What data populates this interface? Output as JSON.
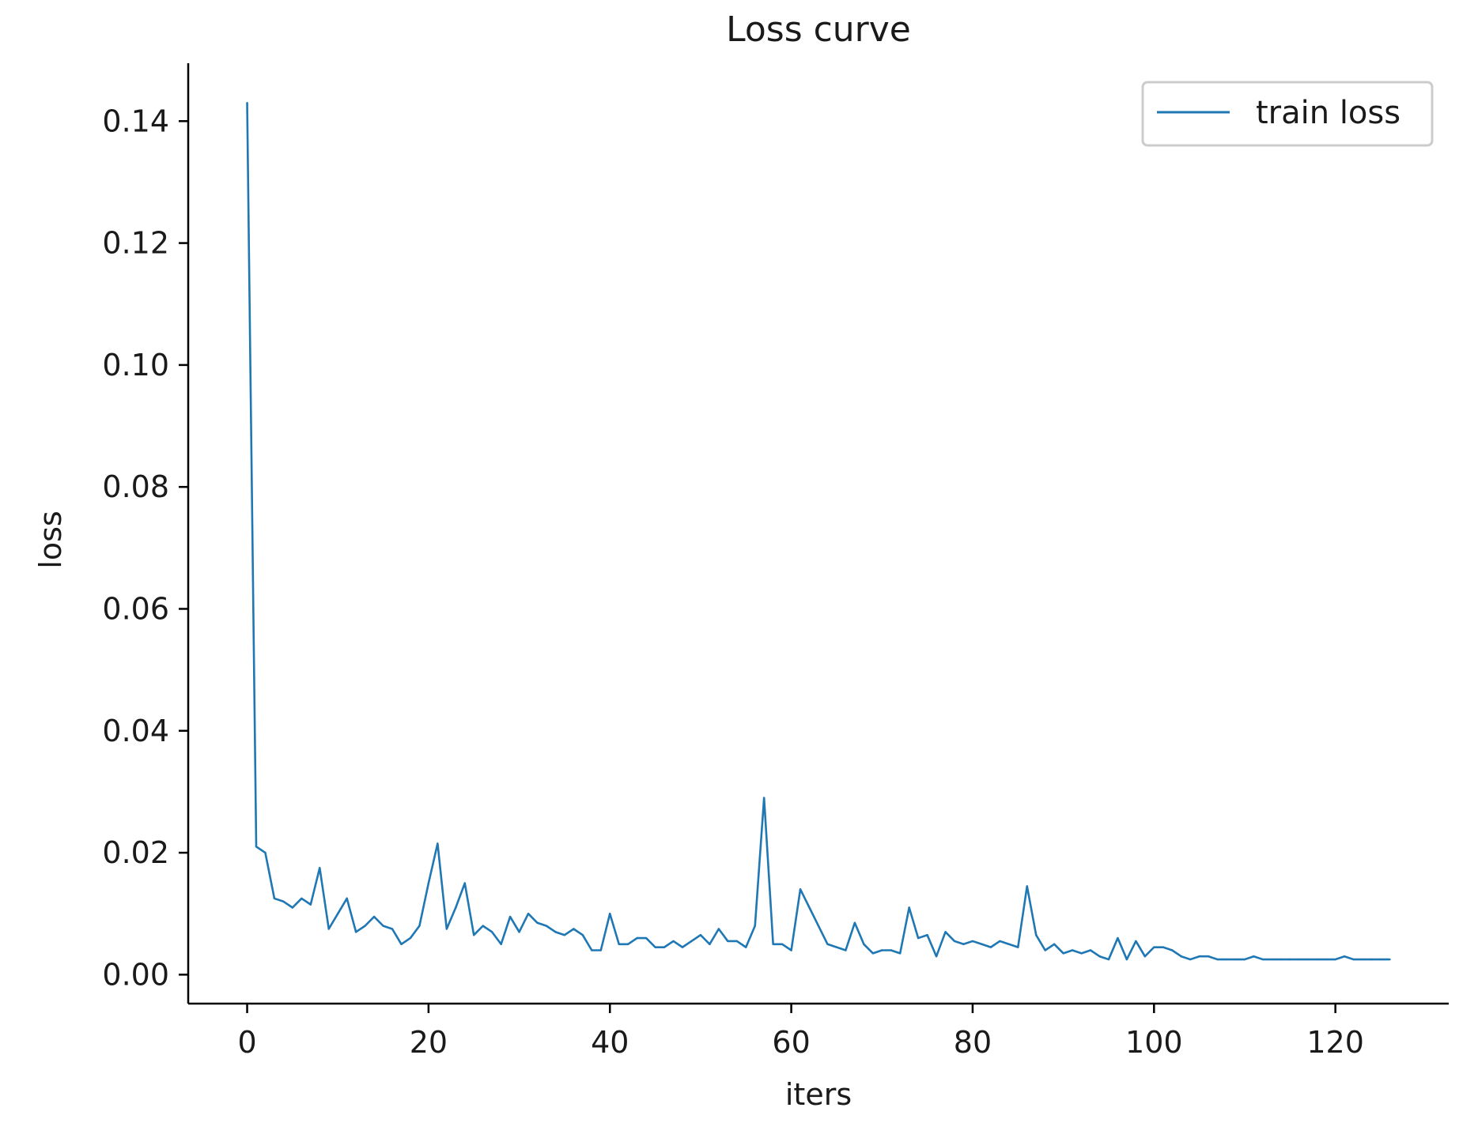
{
  "chart_data": {
    "type": "line",
    "title": "Loss curve",
    "xlabel": "iters",
    "ylabel": "loss",
    "xlim": [
      -6.5,
      132.5
    ],
    "ylim": [
      -0.00475,
      0.1495
    ],
    "x_ticks": [
      0,
      20,
      40,
      60,
      80,
      100,
      120
    ],
    "x_tick_labels": [
      "0",
      "20",
      "40",
      "60",
      "80",
      "100",
      "120"
    ],
    "y_ticks": [
      0.0,
      0.02,
      0.04,
      0.06,
      0.08,
      0.1,
      0.12,
      0.14
    ],
    "y_tick_labels": [
      "0.00",
      "0.02",
      "0.04",
      "0.06",
      "0.08",
      "0.10",
      "0.12",
      "0.14"
    ],
    "grid": false,
    "legend_position": "top-right",
    "line_color": "#1f77b4",
    "series": [
      {
        "name": "train loss",
        "x": [
          0,
          1,
          2,
          3,
          4,
          5,
          6,
          7,
          8,
          9,
          10,
          11,
          12,
          13,
          14,
          15,
          16,
          17,
          18,
          19,
          20,
          21,
          22,
          23,
          24,
          25,
          26,
          27,
          28,
          29,
          30,
          31,
          32,
          33,
          34,
          35,
          36,
          37,
          38,
          39,
          40,
          41,
          42,
          43,
          44,
          45,
          46,
          47,
          48,
          49,
          50,
          51,
          52,
          53,
          54,
          55,
          56,
          57,
          58,
          59,
          60,
          61,
          62,
          63,
          64,
          65,
          66,
          67,
          68,
          69,
          70,
          71,
          72,
          73,
          74,
          75,
          76,
          77,
          78,
          79,
          80,
          81,
          82,
          83,
          84,
          85,
          86,
          87,
          88,
          89,
          90,
          91,
          92,
          93,
          94,
          95,
          96,
          97,
          98,
          99,
          100,
          101,
          102,
          103,
          104,
          105,
          106,
          107,
          108,
          109,
          110,
          111,
          112,
          113,
          114,
          115,
          116,
          117,
          118,
          119,
          120,
          121,
          122,
          123,
          124,
          125,
          126
        ],
        "y": [
          0.143,
          0.021,
          0.02,
          0.0125,
          0.012,
          0.011,
          0.0125,
          0.0115,
          0.0175,
          0.0075,
          0.01,
          0.0125,
          0.007,
          0.008,
          0.0095,
          0.008,
          0.0075,
          0.005,
          0.006,
          0.008,
          0.015,
          0.0215,
          0.0075,
          0.011,
          0.015,
          0.0065,
          0.008,
          0.007,
          0.005,
          0.0095,
          0.007,
          0.01,
          0.0085,
          0.008,
          0.007,
          0.0065,
          0.0075,
          0.0065,
          0.004,
          0.004,
          0.01,
          0.005,
          0.005,
          0.006,
          0.006,
          0.0045,
          0.0045,
          0.0055,
          0.0045,
          0.0055,
          0.0065,
          0.005,
          0.0075,
          0.0055,
          0.0055,
          0.0045,
          0.008,
          0.029,
          0.005,
          0.005,
          0.004,
          0.014,
          0.011,
          0.008,
          0.005,
          0.0045,
          0.004,
          0.0085,
          0.005,
          0.0035,
          0.004,
          0.004,
          0.0035,
          0.011,
          0.006,
          0.0065,
          0.003,
          0.007,
          0.0055,
          0.005,
          0.0055,
          0.005,
          0.0045,
          0.0055,
          0.005,
          0.0045,
          0.0145,
          0.0065,
          0.004,
          0.005,
          0.0035,
          0.004,
          0.0035,
          0.004,
          0.003,
          0.0025,
          0.006,
          0.0025,
          0.0055,
          0.003,
          0.0045,
          0.0045,
          0.004,
          0.003,
          0.0025,
          0.003,
          0.003,
          0.0025,
          0.0025,
          0.0025,
          0.0025,
          0.003,
          0.0025,
          0.0025,
          0.0025,
          0.0025,
          0.0025,
          0.0025,
          0.0025,
          0.0025,
          0.0025,
          0.003,
          0.0025,
          0.0025,
          0.0025,
          0.0025,
          0.0025
        ]
      }
    ]
  }
}
